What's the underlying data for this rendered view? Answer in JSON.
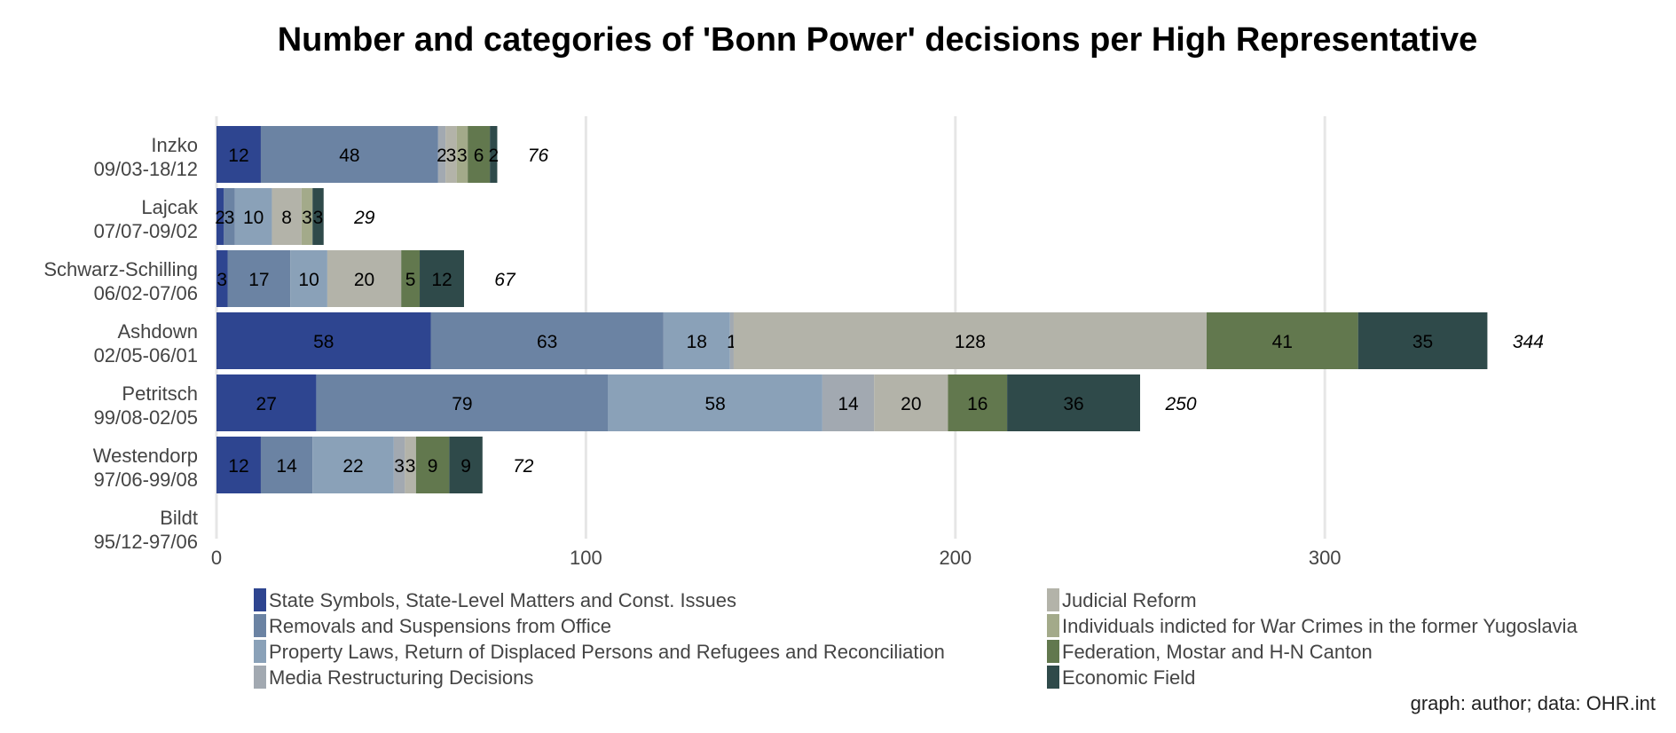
{
  "chart_data": {
    "type": "bar",
    "orientation": "horizontal",
    "stacked": true,
    "title": "Number and categories of 'Bonn Power' decisions per High Representative",
    "caption": "graph: author; data: OHR.int",
    "xlim": [
      0,
      360
    ],
    "xticks": [
      0,
      100,
      200,
      300
    ],
    "grid": "vertical major lines",
    "legend_position": "bottom",
    "categories": [
      [
        "Inzko",
        "09/03-18/12"
      ],
      [
        "Lajcak",
        "07/07-09/02"
      ],
      [
        "Schwarz-Schilling",
        "06/02-07/06"
      ],
      [
        "Ashdown",
        "02/05-06/01"
      ],
      [
        "Petritsch",
        "99/08-02/05"
      ],
      [
        "Westendorp",
        "97/06-99/08"
      ],
      [
        "Bildt",
        "95/12-97/06"
      ]
    ],
    "totals": [
      76,
      29,
      67,
      344,
      250,
      72,
      null
    ],
    "series": [
      {
        "name": "State Symbols, State-Level Matters and Const. Issues",
        "color": "#2e4590",
        "values": [
          12,
          2,
          3,
          58,
          27,
          12,
          0
        ]
      },
      {
        "name": "Removals and Suspensions from Office",
        "color": "#6b83a3",
        "values": [
          48,
          3,
          17,
          63,
          79,
          14,
          0
        ]
      },
      {
        "name": "Property Laws, Return of Displaced Persons and Refugees and Reconciliation",
        "color": "#8aa1b8",
        "values": [
          0,
          10,
          10,
          18,
          58,
          22,
          0
        ]
      },
      {
        "name": "Media Restructuring Decisions",
        "color": "#a2a9b1",
        "values": [
          2,
          0,
          0,
          1,
          14,
          3,
          0
        ]
      },
      {
        "name": "Judicial Reform",
        "color": "#b3b3a9",
        "values": [
          3,
          8,
          20,
          128,
          20,
          3,
          0
        ]
      },
      {
        "name": "Individuals indicted for War Crimes in the former Yugoslavia",
        "color": "#a3aa8a",
        "values": [
          3,
          3,
          0,
          0,
          0,
          0,
          0
        ]
      },
      {
        "name": "Federation, Mostar and H-N Canton",
        "color": "#62784e",
        "values": [
          6,
          0,
          5,
          41,
          16,
          9,
          0
        ]
      },
      {
        "name": "Economic Field",
        "color": "#2f4a4a",
        "values": [
          2,
          3,
          12,
          35,
          36,
          9,
          0
        ]
      }
    ]
  }
}
